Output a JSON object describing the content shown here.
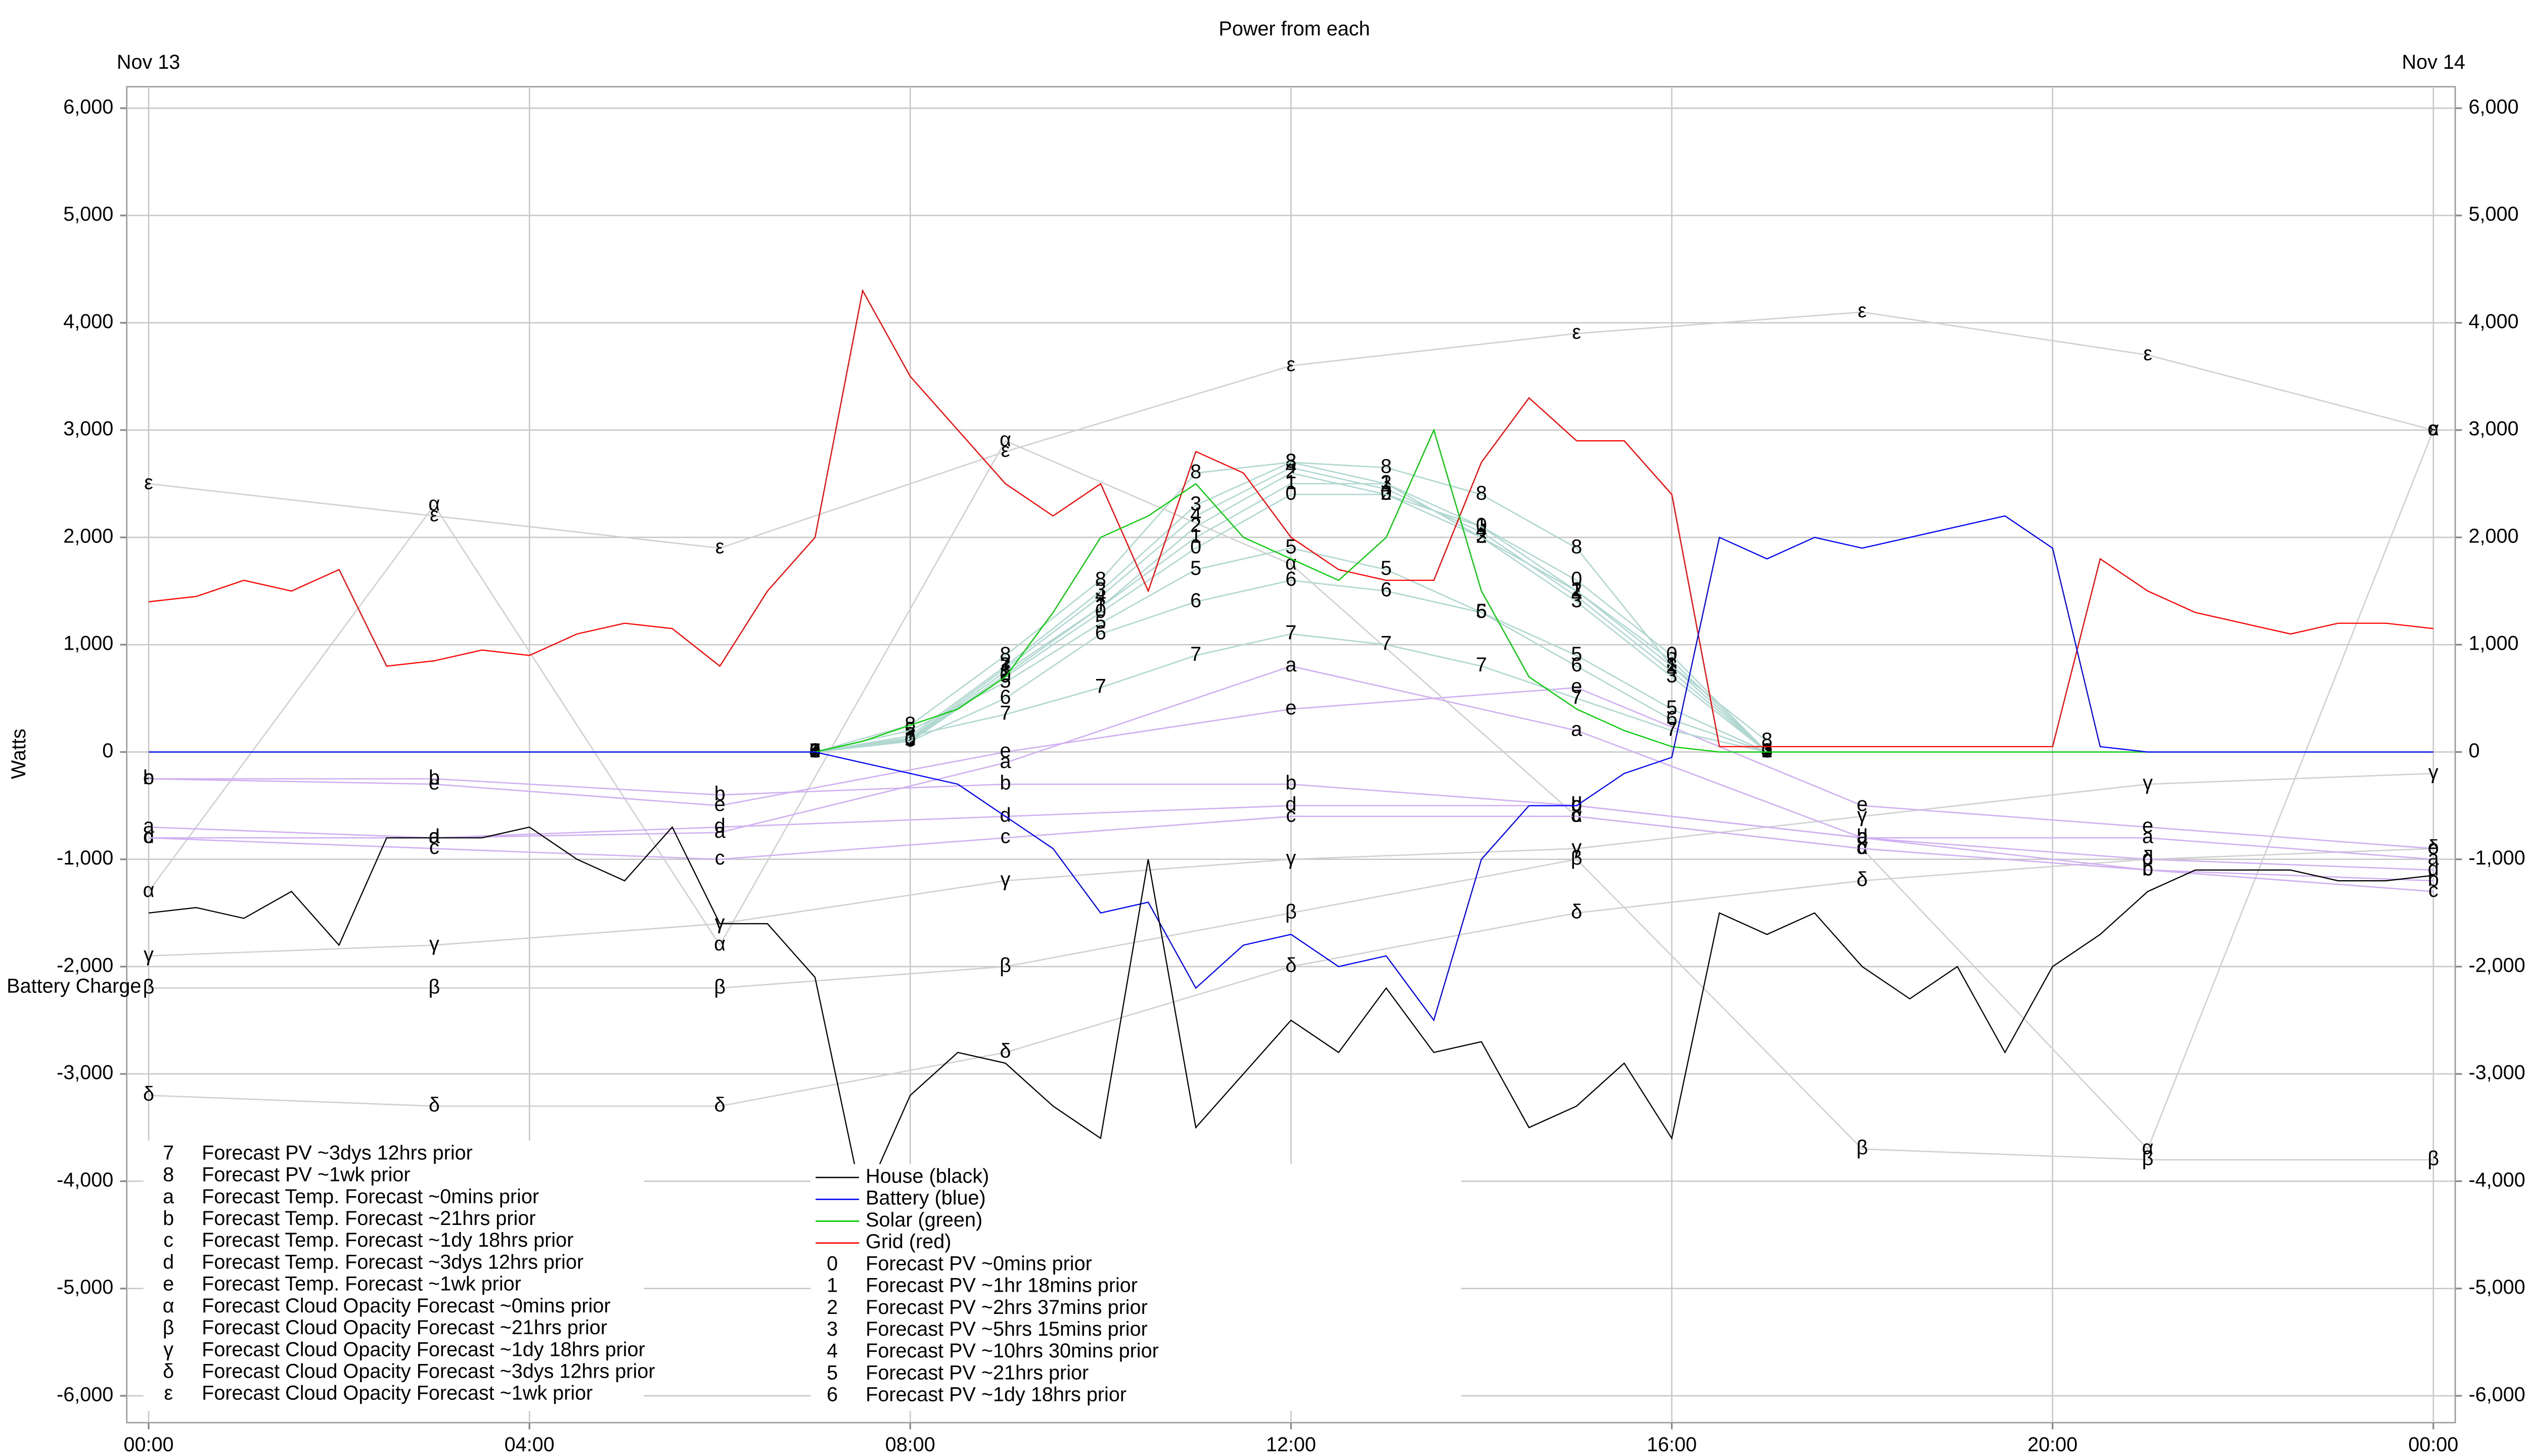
{
  "chart_data": {
    "type": "line",
    "title": "Power from each",
    "ylabel": "Watts",
    "annotations": [
      "Nov 13",
      "Nov 14",
      "Battery Charge"
    ],
    "grid": true,
    "legend": "lower left",
    "xlim": [
      -0.23,
      24.23
    ],
    "ylim": [
      -6250,
      6200
    ],
    "y2lim": [
      -6250,
      6200
    ],
    "xticks": [
      {
        "value": 0,
        "label": "00:00"
      },
      {
        "value": 4,
        "label": "04:00"
      },
      {
        "value": 8,
        "label": "08:00"
      },
      {
        "value": 12,
        "label": "12:00"
      },
      {
        "value": 16,
        "label": "16:00"
      },
      {
        "value": 20,
        "label": "20:00"
      },
      {
        "value": 24,
        "label": "00:00"
      }
    ],
    "yticks": [
      {
        "value": -6000,
        "label": "-6,000"
      },
      {
        "value": -5000,
        "label": "-5,000"
      },
      {
        "value": -4000,
        "label": "-4,000"
      },
      {
        "value": -3000,
        "label": "-3,000"
      },
      {
        "value": -2000,
        "label": "-2,000"
      },
      {
        "value": -1000,
        "label": "-1,000"
      },
      0,
      {
        "value": 1000,
        "label": "1,000"
      },
      {
        "value": 2000,
        "label": "2,000"
      },
      {
        "value": 3000,
        "label": "3,000"
      },
      {
        "value": 4000,
        "label": "4,000"
      },
      {
        "value": 5000,
        "label": "5,000"
      },
      {
        "value": 6000,
        "label": "6,000"
      }
    ],
    "x": [
      0,
      0.5,
      1,
      1.5,
      2,
      2.5,
      3,
      3.5,
      4,
      4.5,
      5,
      5.5,
      6,
      6.5,
      7,
      7.5,
      8,
      8.5,
      9,
      9.5,
      10,
      10.5,
      11,
      11.5,
      12,
      12.5,
      13,
      13.5,
      14,
      14.5,
      15,
      15.5,
      16,
      16.5,
      17,
      17.5,
      18,
      18.5,
      19,
      19.5,
      20,
      20.5,
      21,
      21.5,
      22,
      22.5,
      23,
      23.5,
      24
    ],
    "series": [
      {
        "name": "House (black)",
        "color": "#000000",
        "values": [
          -1500,
          -1450,
          -1550,
          -1300,
          -1800,
          -800,
          -800,
          -800,
          -700,
          -1000,
          -1200,
          -700,
          -1600,
          -1600,
          -2100,
          -4200,
          -3200,
          -2800,
          -2900,
          -3300,
          -3600,
          -1000,
          -3500,
          -3000,
          -2500,
          -2800,
          -2200,
          -2800,
          -2700,
          -3500,
          -3300,
          -2900,
          -3600,
          -1500,
          -1700,
          -1500,
          -2000,
          -2300,
          -2000,
          -2800,
          -2000,
          -1700,
          -1300,
          -1100,
          -1100,
          -1100,
          -1200,
          -1200,
          -1150
        ]
      },
      {
        "name": "Battery (blue)",
        "color": "#0000ff",
        "values": [
          0,
          0,
          0,
          0,
          0,
          0,
          0,
          0,
          0,
          0,
          0,
          0,
          0,
          0,
          0,
          -100,
          -200,
          -300,
          -600,
          -900,
          -1500,
          -1400,
          -2200,
          -1800,
          -1700,
          -2000,
          -1900,
          -2500,
          -1000,
          -500,
          -500,
          -200,
          -50,
          2000,
          1800,
          2000,
          1900,
          2000,
          2100,
          2200,
          1900,
          50,
          0,
          0,
          0,
          0,
          0,
          0,
          0
        ]
      },
      {
        "name": "Solar (green)",
        "color": "#00cc00",
        "values": [
          0,
          0,
          0,
          0,
          0,
          0,
          0,
          0,
          0,
          0,
          0,
          0,
          0,
          0,
          0,
          100,
          250,
          400,
          700,
          1300,
          2000,
          2200,
          2500,
          2000,
          1800,
          1600,
          2000,
          3000,
          1500,
          700,
          400,
          200,
          50,
          0,
          0,
          0,
          0,
          0,
          0,
          0,
          0,
          0,
          0,
          0,
          0,
          0,
          0,
          0,
          0
        ]
      },
      {
        "name": "Grid (red)",
        "color": "#ff0000",
        "values": [
          1400,
          1450,
          1600,
          1500,
          1700,
          800,
          850,
          950,
          900,
          1100,
          1200,
          1150,
          800,
          1500,
          2000,
          4300,
          3500,
          3000,
          2500,
          2200,
          2500,
          1500,
          2800,
          2600,
          2000,
          1700,
          1600,
          1600,
          2700,
          3300,
          2900,
          2900,
          2400,
          50,
          50,
          50,
          50,
          50,
          50,
          50,
          50,
          1800,
          1500,
          1300,
          1200,
          1100,
          1200,
          1200,
          1150
        ]
      },
      {
        "name": "Forecast PV ~0mins prior",
        "marker": "0",
        "color": "#b0d8d0",
        "x": [
          7,
          8,
          9,
          10,
          11,
          12,
          13,
          14,
          15,
          16,
          17
        ],
        "values": [
          0,
          100,
          700,
          1300,
          1900,
          2400,
          2400,
          2100,
          1600,
          900,
          0
        ]
      },
      {
        "name": "Forecast PV ~1hr 18mins prior",
        "marker": "1",
        "color": "#b0d8d0",
        "x": [
          7,
          8,
          9,
          10,
          11,
          12,
          13,
          14,
          15,
          16,
          17
        ],
        "values": [
          0,
          120,
          750,
          1350,
          2000,
          2500,
          2500,
          2100,
          1500,
          800,
          0
        ]
      },
      {
        "name": "Forecast PV ~2hrs 37mins prior",
        "marker": "2",
        "color": "#b0d8d0",
        "x": [
          7,
          8,
          9,
          10,
          11,
          12,
          13,
          14,
          15,
          16,
          17
        ],
        "values": [
          0,
          110,
          720,
          1350,
          2100,
          2600,
          2400,
          2000,
          1500,
          850,
          0
        ]
      },
      {
        "name": "Forecast PV ~5hrs 15mins prior",
        "marker": "3",
        "color": "#b0d8d0",
        "x": [
          7,
          8,
          9,
          10,
          11,
          12,
          13,
          14,
          15,
          16,
          17
        ],
        "values": [
          0,
          150,
          800,
          1500,
          2300,
          2700,
          2500,
          2000,
          1400,
          700,
          0
        ]
      },
      {
        "name": "Forecast PV ~10hrs 30mins prior",
        "marker": "4",
        "color": "#b0d8d0",
        "x": [
          7,
          8,
          9,
          10,
          11,
          12,
          13,
          14,
          15,
          16,
          17
        ],
        "values": [
          0,
          130,
          780,
          1450,
          2200,
          2650,
          2450,
          2050,
          1450,
          750,
          0
        ]
      },
      {
        "name": "Forecast PV ~21hrs prior",
        "marker": "5",
        "color": "#b0d8d0",
        "x": [
          7,
          8,
          9,
          10,
          11,
          12,
          13,
          14,
          15,
          16,
          17
        ],
        "values": [
          0,
          200,
          650,
          1200,
          1700,
          1900,
          1700,
          1300,
          900,
          400,
          0
        ]
      },
      {
        "name": "Forecast PV ~1dy 18hrs prior",
        "marker": "6",
        "color": "#b0d8d0",
        "x": [
          7,
          8,
          9,
          10,
          11,
          12,
          13,
          14,
          15,
          16,
          17
        ],
        "values": [
          0,
          100,
          500,
          1100,
          1400,
          1600,
          1500,
          1300,
          800,
          300,
          0
        ]
      },
      {
        "name": "Forecast PV ~3dys 12hrs prior",
        "marker": "7",
        "color": "#b0d8d0",
        "x": [
          7,
          8,
          9,
          10,
          11,
          12,
          13,
          14,
          15,
          16,
          17
        ],
        "values": [
          0,
          150,
          350,
          600,
          900,
          1100,
          1000,
          800,
          500,
          200,
          0
        ]
      },
      {
        "name": "Forecast PV ~1wk prior",
        "marker": "8",
        "color": "#b0d8d0",
        "x": [
          7,
          8,
          9,
          10,
          11,
          12,
          13,
          14,
          15,
          16,
          17
        ],
        "values": [
          0,
          250,
          900,
          1600,
          2600,
          2700,
          2650,
          2400,
          1900,
          800,
          100
        ]
      },
      {
        "name": "Forecast Temp. Forecast ~0mins prior",
        "marker": "a",
        "color": "#d0b0f0",
        "x": [
          0,
          3,
          6,
          9,
          12,
          15,
          18,
          21,
          24
        ],
        "values": [
          -700,
          -800,
          -750,
          -100,
          800,
          200,
          -800,
          -800,
          -1000
        ]
      },
      {
        "name": "Forecast Temp. Forecast ~21hrs prior",
        "marker": "b",
        "color": "#d0b0f0",
        "x": [
          0,
          3,
          6,
          9,
          12,
          15,
          18,
          21,
          24
        ],
        "values": [
          -250,
          -250,
          -400,
          -300,
          -300,
          -500,
          -800,
          -1100,
          -1200
        ]
      },
      {
        "name": "Forecast Temp. Forecast ~1dy 18hrs prior",
        "marker": "c",
        "color": "#d0b0f0",
        "x": [
          0,
          3,
          6,
          9,
          12,
          15,
          18,
          21,
          24
        ],
        "values": [
          -800,
          -900,
          -1000,
          -800,
          -600,
          -600,
          -900,
          -1100,
          -1300
        ]
      },
      {
        "name": "Forecast Temp. Forecast ~3dys 12hrs prior",
        "marker": "d",
        "color": "#d0b0f0",
        "x": [
          0,
          3,
          6,
          9,
          12,
          15,
          18,
          21,
          24
        ],
        "values": [
          -800,
          -800,
          -700,
          -600,
          -500,
          -500,
          -800,
          -1000,
          -1100
        ]
      },
      {
        "name": "Forecast Temp. Forecast ~1wk prior",
        "marker": "e",
        "color": "#d0b0f0",
        "x": [
          0,
          3,
          6,
          9,
          12,
          15,
          18,
          21,
          24
        ],
        "values": [
          -250,
          -300,
          -500,
          0,
          400,
          600,
          -500,
          -700,
          -900
        ]
      },
      {
        "name": "Forecast Cloud Opacity Forecast ~0mins prior",
        "marker": "α",
        "color": "#d0d0d0",
        "x": [
          0,
          3,
          6,
          9,
          12,
          15,
          18,
          21,
          24
        ],
        "values": [
          -1300,
          2300,
          -1800,
          2900,
          1750,
          -600,
          -900,
          -3700,
          3000
        ]
      },
      {
        "name": "Forecast Cloud Opacity Forecast ~21hrs prior",
        "marker": "β",
        "color": "#d0d0d0",
        "x": [
          0,
          3,
          6,
          9,
          12,
          15,
          18,
          21,
          24
        ],
        "values": [
          -2200,
          -2200,
          -2200,
          -2000,
          -1500,
          -1000,
          -3700,
          -3800,
          -3800
        ]
      },
      {
        "name": "Forecast Cloud Opacity Forecast ~1dy 18hrs prior",
        "marker": "γ",
        "color": "#d0d0d0",
        "x": [
          0,
          3,
          6,
          9,
          12,
          15,
          18,
          21,
          24
        ],
        "values": [
          -1900,
          -1800,
          -1600,
          -1200,
          -1000,
          -900,
          -600,
          -300,
          -200
        ]
      },
      {
        "name": "Forecast Cloud Opacity Forecast ~3dys 12hrs prior",
        "marker": "δ",
        "color": "#d0d0d0",
        "x": [
          0,
          3,
          6,
          9,
          12,
          15,
          18,
          21,
          24
        ],
        "values": [
          -3200,
          -3300,
          -3300,
          -2800,
          -2000,
          -1500,
          -1200,
          -1000,
          -900
        ]
      },
      {
        "name": "Forecast Cloud Opacity Forecast ~1wk prior",
        "marker": "ε",
        "color": "#d0d0d0",
        "x": [
          0,
          3,
          6,
          9,
          12,
          15,
          18,
          21,
          24
        ],
        "values": [
          2500,
          2200,
          1900,
          2800,
          3600,
          3900,
          4100,
          3700,
          3000
        ]
      }
    ]
  }
}
